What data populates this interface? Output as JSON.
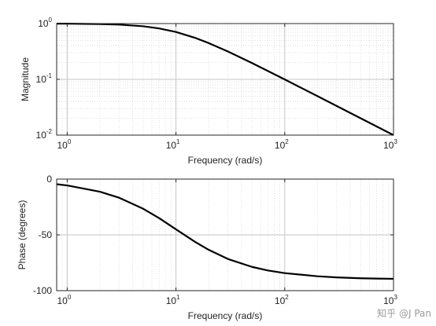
{
  "chart_data": [
    {
      "type": "line",
      "xscale": "log",
      "yscale": "log",
      "xlim": [
        0.8,
        1000
      ],
      "ylim": [
        0.01,
        1
      ],
      "grid": true,
      "xlabel": "Frequency (rad/s)",
      "ylabel": "Magnitude",
      "x_ticks": [
        {
          "base": "10",
          "exp": "0",
          "value": 1
        },
        {
          "base": "10",
          "exp": "1",
          "value": 10
        },
        {
          "base": "10",
          "exp": "2",
          "value": 100
        },
        {
          "base": "10",
          "exp": "3",
          "value": 1000
        }
      ],
      "y_ticks": [
        {
          "base": "10",
          "exp": "0",
          "value": 1
        },
        {
          "base": "10",
          "exp": "-1",
          "value": 0.1
        },
        {
          "base": "10",
          "exp": "-2",
          "value": 0.01
        }
      ],
      "series": [
        {
          "color": "#000000",
          "x": [
            0.8,
            1,
            2,
            3,
            5,
            7,
            10,
            15,
            20,
            30,
            50,
            70,
            100,
            200,
            300,
            500,
            700,
            1000
          ],
          "y": [
            0.997,
            0.995,
            0.981,
            0.958,
            0.894,
            0.819,
            0.707,
            0.555,
            0.447,
            0.316,
            0.196,
            0.141,
            0.0995,
            0.05,
            0.0333,
            0.02,
            0.0143,
            0.01
          ]
        }
      ]
    },
    {
      "type": "line",
      "xscale": "log",
      "xlim": [
        0.8,
        1000
      ],
      "ylim": [
        -100,
        0
      ],
      "grid": true,
      "xlabel": "Frequency (rad/s)",
      "ylabel": "Phase (degrees)",
      "x_ticks": [
        {
          "base": "10",
          "exp": "0",
          "value": 1
        },
        {
          "base": "10",
          "exp": "1",
          "value": 10
        },
        {
          "base": "10",
          "exp": "2",
          "value": 100
        },
        {
          "base": "10",
          "exp": "3",
          "value": 1000
        }
      ],
      "y_ticks": [
        {
          "label": "0",
          "value": 0
        },
        {
          "label": "-50",
          "value": -50
        },
        {
          "label": "-100",
          "value": -100
        }
      ],
      "series": [
        {
          "color": "#000000",
          "x": [
            0.8,
            1,
            2,
            3,
            5,
            7,
            10,
            15,
            20,
            30,
            50,
            70,
            100,
            200,
            300,
            500,
            700,
            1000
          ],
          "y": [
            -4.6,
            -5.7,
            -11.3,
            -16.7,
            -26.6,
            -35.0,
            -45.0,
            -56.3,
            -63.4,
            -71.6,
            -78.7,
            -81.9,
            -84.3,
            -87.1,
            -88.1,
            -88.9,
            -89.2,
            -89.4
          ]
        }
      ]
    }
  ],
  "watermark": "知乎 @J Pan"
}
